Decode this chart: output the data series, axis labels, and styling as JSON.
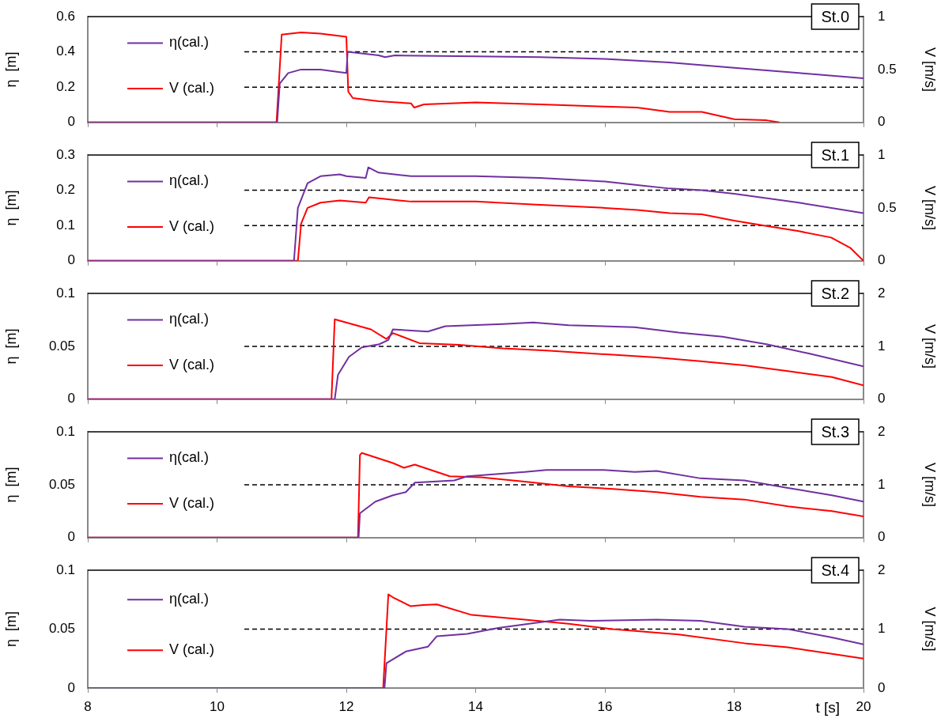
{
  "chart_data": [
    {
      "type": "line",
      "annotations": [
        "St.0"
      ],
      "ylabel": "η  [m]",
      "y2label": "V [m/s]",
      "xlim": [
        8,
        20
      ],
      "xticks": [
        8,
        10,
        12,
        14,
        16,
        18,
        20
      ],
      "ylim": [
        0,
        0.6
      ],
      "yticks": [
        0,
        0.2,
        0.4,
        0.6
      ],
      "y2lim": [
        0,
        1
      ],
      "y2ticks": [
        0,
        0.5,
        1
      ],
      "grid": "y",
      "legend": "top left",
      "tick_labels": "y",
      "series": [
        {
          "name": "η(cal.)",
          "color": "#7030a0",
          "x": [
            8,
            10.93,
            10.97,
            11.1,
            11.3,
            11.6,
            11.9,
            12.0,
            12.02,
            12.5,
            12.6,
            12.75,
            14,
            15,
            16,
            17,
            18,
            19,
            20
          ],
          "values": [
            0,
            0,
            0.22,
            0.28,
            0.3,
            0.3,
            0.285,
            0.28,
            0.4,
            0.38,
            0.37,
            0.38,
            0.375,
            0.37,
            0.36,
            0.34,
            0.31,
            0.28,
            0.25
          ]
        },
        {
          "name": "V (cal.)",
          "color": "#ff0000",
          "axis": "y2",
          "x": [
            8,
            10.92,
            11.0,
            11.3,
            11.6,
            12.0,
            12.03,
            12.1,
            12.5,
            13.0,
            13.05,
            13.2,
            14,
            15,
            16,
            16.5,
            17,
            17.5,
            18,
            18.5,
            18.7
          ],
          "values": [
            0,
            0,
            0.83,
            0.85,
            0.84,
            0.81,
            0.29,
            0.23,
            0.2,
            0.18,
            0.14,
            0.17,
            0.19,
            0.17,
            0.15,
            0.14,
            0.1,
            0.1,
            0.03,
            0.02,
            0
          ]
        }
      ]
    },
    {
      "type": "line",
      "annotations": [
        "St.1"
      ],
      "ylabel": "η  [m]",
      "y2label": "V [m/s]",
      "xlim": [
        8,
        20
      ],
      "xticks": [
        8,
        10,
        12,
        14,
        16,
        18,
        20
      ],
      "ylim": [
        0,
        0.3
      ],
      "yticks": [
        0,
        0.1,
        0.2,
        0.3
      ],
      "y2lim": [
        0,
        1
      ],
      "y2ticks": [
        0,
        0.5,
        1
      ],
      "grid": "y",
      "legend": "top left",
      "tick_labels": "y",
      "series": [
        {
          "name": "η(cal.)",
          "color": "#7030a0",
          "x": [
            8,
            11.19,
            11.25,
            11.4,
            11.6,
            11.9,
            12.0,
            12.3,
            12.34,
            12.5,
            13,
            14,
            15,
            15.5,
            16,
            16.5,
            17,
            17.5,
            18,
            19,
            20
          ],
          "values": [
            0,
            0,
            0.15,
            0.22,
            0.24,
            0.245,
            0.24,
            0.235,
            0.265,
            0.25,
            0.24,
            0.24,
            0.235,
            0.23,
            0.225,
            0.215,
            0.205,
            0.2,
            0.19,
            0.165,
            0.135
          ]
        },
        {
          "name": "V (cal.)",
          "color": "#ff0000",
          "axis": "y2",
          "x": [
            8,
            11.25,
            11.3,
            11.4,
            11.6,
            11.9,
            12.3,
            12.35,
            12.5,
            13,
            14,
            15,
            16,
            16.5,
            17,
            17.5,
            18,
            18.5,
            19,
            19.5,
            19.8,
            20
          ],
          "values": [
            0,
            0,
            0.35,
            0.5,
            0.55,
            0.57,
            0.55,
            0.6,
            0.59,
            0.56,
            0.56,
            0.53,
            0.5,
            0.48,
            0.45,
            0.44,
            0.38,
            0.33,
            0.28,
            0.22,
            0.12,
            0
          ]
        }
      ]
    },
    {
      "type": "line",
      "annotations": [
        "St.2"
      ],
      "ylabel": "η  [m]",
      "y2label": "V [m/s]",
      "xlim": [
        8,
        20
      ],
      "xticks": [
        8,
        10,
        12,
        14,
        16,
        18,
        20
      ],
      "ylim": [
        0,
        0.1
      ],
      "yticks": [
        0,
        0.05,
        0.1
      ],
      "y2lim": [
        0,
        2
      ],
      "y2ticks": [
        0,
        1,
        2
      ],
      "grid": "y",
      "legend": "top left",
      "tick_labels": "y",
      "series": [
        {
          "name": "η(cal.)",
          "color": "#7030a0",
          "x": [
            8,
            11.82,
            11.87,
            12.04,
            12.24,
            12.51,
            12.65,
            12.72,
            13.26,
            13.53,
            14.42,
            14.89,
            15.44,
            16.46,
            17.14,
            17.82,
            18.5,
            19.17,
            20
          ],
          "values": [
            0,
            0,
            0.023,
            0.04,
            0.049,
            0.052,
            0.056,
            0.066,
            0.064,
            0.069,
            0.071,
            0.0725,
            0.07,
            0.068,
            0.063,
            0.059,
            0.052,
            0.043,
            0.031
          ]
        },
        {
          "name": "V (cal.)",
          "color": "#ff0000",
          "axis": "y2",
          "x": [
            8,
            11.77,
            11.82,
            12.38,
            12.62,
            12.72,
            13.13,
            13.74,
            14.42,
            15.1,
            16.12,
            16.8,
            17.48,
            18.16,
            18.83,
            19.51,
            20
          ],
          "values": [
            0,
            0,
            1.51,
            1.32,
            1.14,
            1.25,
            1.06,
            1.03,
            0.96,
            0.92,
            0.84,
            0.79,
            0.72,
            0.64,
            0.53,
            0.42,
            0.26
          ]
        }
      ]
    },
    {
      "type": "line",
      "annotations": [
        "St.3"
      ],
      "ylabel": "η  [m]",
      "y2label": "V [m/s]",
      "xlim": [
        8,
        20
      ],
      "xticks": [
        8,
        10,
        12,
        14,
        16,
        18,
        20
      ],
      "ylim": [
        0,
        0.1
      ],
      "yticks": [
        0,
        0.05,
        0.1
      ],
      "y2lim": [
        0,
        2
      ],
      "y2ticks": [
        0,
        1,
        2
      ],
      "grid": "y",
      "legend": "top left",
      "tick_labels": "y",
      "series": [
        {
          "name": "η(cal.)",
          "color": "#7030a0",
          "x": [
            8,
            12.19,
            12.21,
            12.45,
            12.72,
            12.92,
            13.06,
            13.67,
            13.87,
            14.76,
            15.1,
            15.98,
            16.46,
            16.8,
            17.48,
            18.16,
            18.83,
            19.51,
            20
          ],
          "values": [
            0,
            0,
            0.023,
            0.034,
            0.04,
            0.043,
            0.052,
            0.054,
            0.058,
            0.062,
            0.064,
            0.064,
            0.062,
            0.063,
            0.056,
            0.054,
            0.047,
            0.04,
            0.034
          ]
        },
        {
          "name": "V (cal.)",
          "color": "#ff0000",
          "axis": "y2",
          "x": [
            8,
            12.18,
            12.21,
            12.24,
            12.72,
            12.89,
            13.06,
            13.6,
            14.08,
            14.76,
            15.44,
            16.12,
            16.8,
            17.48,
            18.16,
            18.83,
            19.51,
            20
          ],
          "values": [
            0,
            0,
            1.56,
            1.6,
            1.41,
            1.32,
            1.38,
            1.16,
            1.14,
            1.06,
            0.97,
            0.92,
            0.86,
            0.77,
            0.72,
            0.59,
            0.5,
            0.4
          ]
        }
      ]
    },
    {
      "type": "line",
      "annotations": [
        "St.4"
      ],
      "xlabel": "t [s]",
      "ylabel": "η  [m]",
      "y2label": "V [m/s]",
      "xlim": [
        8,
        20
      ],
      "xticks": [
        8,
        10,
        12,
        14,
        16,
        18,
        20
      ],
      "ylim": [
        0,
        0.1
      ],
      "yticks": [
        0,
        0.05,
        0.1
      ],
      "y2lim": [
        0,
        2
      ],
      "y2ticks": [
        0,
        1,
        2
      ],
      "grid": "y",
      "legend": "top left",
      "series": [
        {
          "name": "η(cal.)",
          "color": "#7030a0",
          "x": [
            8,
            12.59,
            12.62,
            12.92,
            13.26,
            13.4,
            13.87,
            14.35,
            15.3,
            15.78,
            16.8,
            17.48,
            18.16,
            18.83,
            19.51,
            20
          ],
          "values": [
            0,
            0,
            0.021,
            0.031,
            0.035,
            0.044,
            0.046,
            0.051,
            0.058,
            0.057,
            0.058,
            0.057,
            0.052,
            0.05,
            0.043,
            0.037
          ]
        },
        {
          "name": "V (cal.)",
          "color": "#ff0000",
          "axis": "y2",
          "x": [
            8,
            12.57,
            12.65,
            12.72,
            12.99,
            13.19,
            13.4,
            13.94,
            14.76,
            15.44,
            16.12,
            17.14,
            18.16,
            18.83,
            19.51,
            20
          ],
          "values": [
            0,
            0,
            1.59,
            1.54,
            1.39,
            1.41,
            1.42,
            1.24,
            1.16,
            1.09,
            1,
            0.91,
            0.76,
            0.69,
            0.58,
            0.5
          ]
        }
      ]
    }
  ]
}
